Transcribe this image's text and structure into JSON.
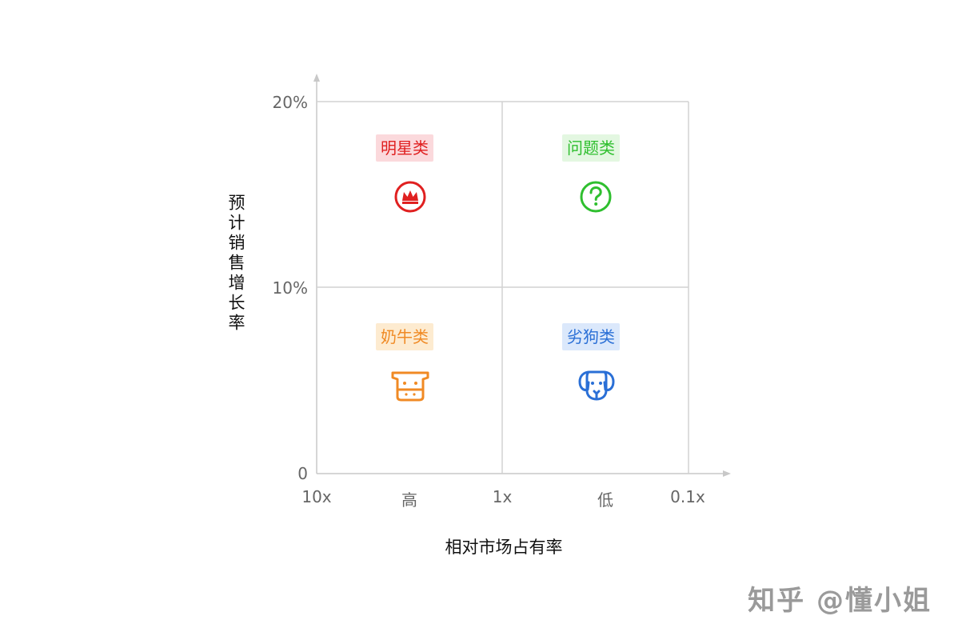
{
  "axes": {
    "y_title": "预计销售增长率",
    "y_ticks": [
      "20%",
      "10%",
      "0"
    ],
    "x_title": "相对市场占有率",
    "x_ticks": [
      "10x",
      "高",
      "1x",
      "低",
      "0.1x"
    ]
  },
  "quadrants": [
    {
      "key": "star",
      "label": "明星类",
      "icon": "crown-circle-icon",
      "color": "#e02020",
      "bg": "#fbd9dc"
    },
    {
      "key": "question",
      "label": "问题类",
      "icon": "question-circle-icon",
      "color": "#2fbf2f",
      "bg": "#e3f7e1"
    },
    {
      "key": "cow",
      "label": "奶牛类",
      "icon": "cow-icon",
      "color": "#f08a24",
      "bg": "#fdebd0"
    },
    {
      "key": "dog",
      "label": "劣狗类",
      "icon": "dog-icon",
      "color": "#2a6fd6",
      "bg": "#dbe8fb"
    }
  ],
  "watermark": "知乎 @懂小姐"
}
